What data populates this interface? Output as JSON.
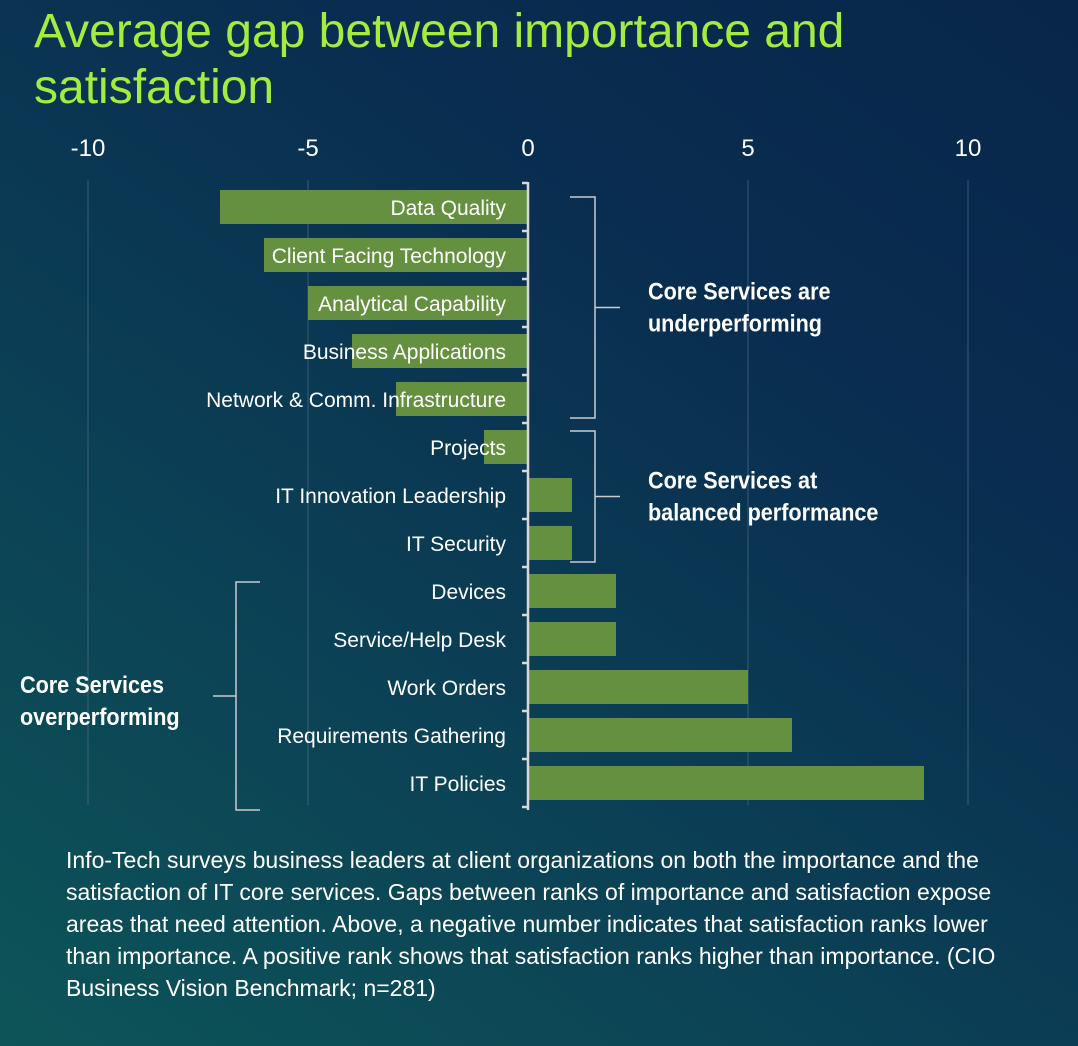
{
  "title": "Average gap between importance and satisfaction",
  "note": "Info-Tech surveys business leaders at client organizations on both the importance and the satisfaction of IT core services. Gaps between ranks of importance and satisfaction expose areas that need attention. Above, a negative number indicates that satisfaction ranks lower than importance. A positive rank shows that satisfaction ranks higher than importance. (CIO Business Vision Benchmark; n=281)",
  "chart_data": {
    "type": "bar",
    "orientation": "horizontal",
    "title": "Average gap between importance and satisfaction",
    "xlim": [
      -10,
      10
    ],
    "xticks": [
      "-10",
      "-5",
      "0",
      "5",
      "10"
    ],
    "xtick_values": [
      -10,
      -5,
      0,
      5,
      10
    ],
    "grid": true,
    "categories": [
      "Data Quality",
      "Client Facing Technology",
      "Analytical Capability",
      "Business Applications",
      "Network & Comm. Infrastructure",
      "Projects",
      "IT Innovation Leadership",
      "IT Security",
      "Devices",
      "Service/Help Desk",
      "Work Orders",
      "Requirements Gathering",
      "IT Policies"
    ],
    "values": [
      -7,
      -6,
      -5,
      -4,
      -3,
      -1,
      1,
      1,
      2,
      2,
      5,
      6,
      9
    ],
    "bar_color": "#64903f",
    "annotations": [
      {
        "lines": [
          "Core Services are",
          "underperforming"
        ],
        "first": 0,
        "last": 4,
        "side": "right"
      },
      {
        "lines": [
          "Core Services at",
          "balanced performance"
        ],
        "first": 5,
        "last": 7,
        "side": "right"
      },
      {
        "lines": [
          "Core Services",
          "overperforming"
        ],
        "first": 8,
        "last": 12,
        "side": "left"
      }
    ]
  }
}
